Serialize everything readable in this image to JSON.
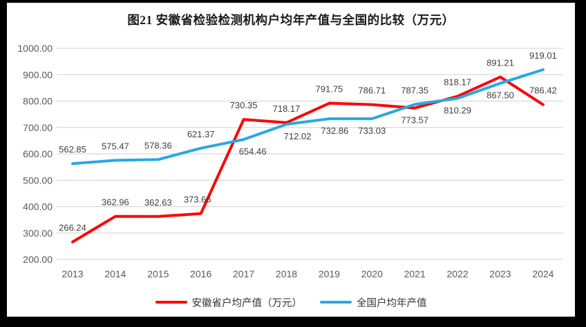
{
  "chart_data": {
    "type": "line",
    "title": "图21 安徽省检验检测机构户均年产值与全国的比较（万元）",
    "categories": [
      "2013",
      "2014",
      "2015",
      "2016",
      "2017",
      "2018",
      "2019",
      "2020",
      "2021",
      "2022",
      "2023",
      "2024"
    ],
    "series": [
      {
        "name": "安徽省户均产值（万元）",
        "color": "#FF0000",
        "values": [
          266.24,
          362.96,
          362.63,
          373.66,
          730.35,
          718.17,
          791.75,
          786.71,
          773.57,
          818.17,
          891.21,
          786.42
        ],
        "label_side": [
          "above",
          "above",
          "above",
          "above",
          "above",
          "above",
          "above",
          "above",
          "below",
          "above",
          "above",
          "above"
        ],
        "label_dx": [
          0,
          0,
          0,
          -5,
          0,
          0,
          0,
          0,
          0,
          0,
          0,
          0
        ]
      },
      {
        "name": "全国户均年产值",
        "color": "#27A9E1",
        "values": [
          562.85,
          575.47,
          578.36,
          621.37,
          654.46,
          712.02,
          732.86,
          733.03,
          787.35,
          810.29,
          867.5,
          919.01
        ],
        "label_side": [
          "above",
          "above",
          "above",
          "above",
          "below",
          "below",
          "below",
          "below",
          "above",
          "below",
          "below",
          "above"
        ],
        "label_dx": [
          0,
          0,
          0,
          0,
          13,
          16,
          8,
          0,
          0,
          0,
          0,
          0
        ]
      }
    ],
    "ylim": [
      200,
      1000
    ],
    "ytick_labels": [
      "200.00",
      "300.00",
      "400.00",
      "500.00",
      "600.00",
      "700.00",
      "800.00",
      "900.00",
      "1000.00"
    ],
    "grid": true,
    "legend_position": "bottom",
    "xlabel": "",
    "ylabel": "",
    "colors": {
      "gridline": "#D9D9D9",
      "axis_text": "#595959",
      "data_label": "#3F3F3F",
      "title_text": "#1A1A1A",
      "page_bg": "#FFFFFF",
      "frame_bg": "#000000"
    }
  }
}
